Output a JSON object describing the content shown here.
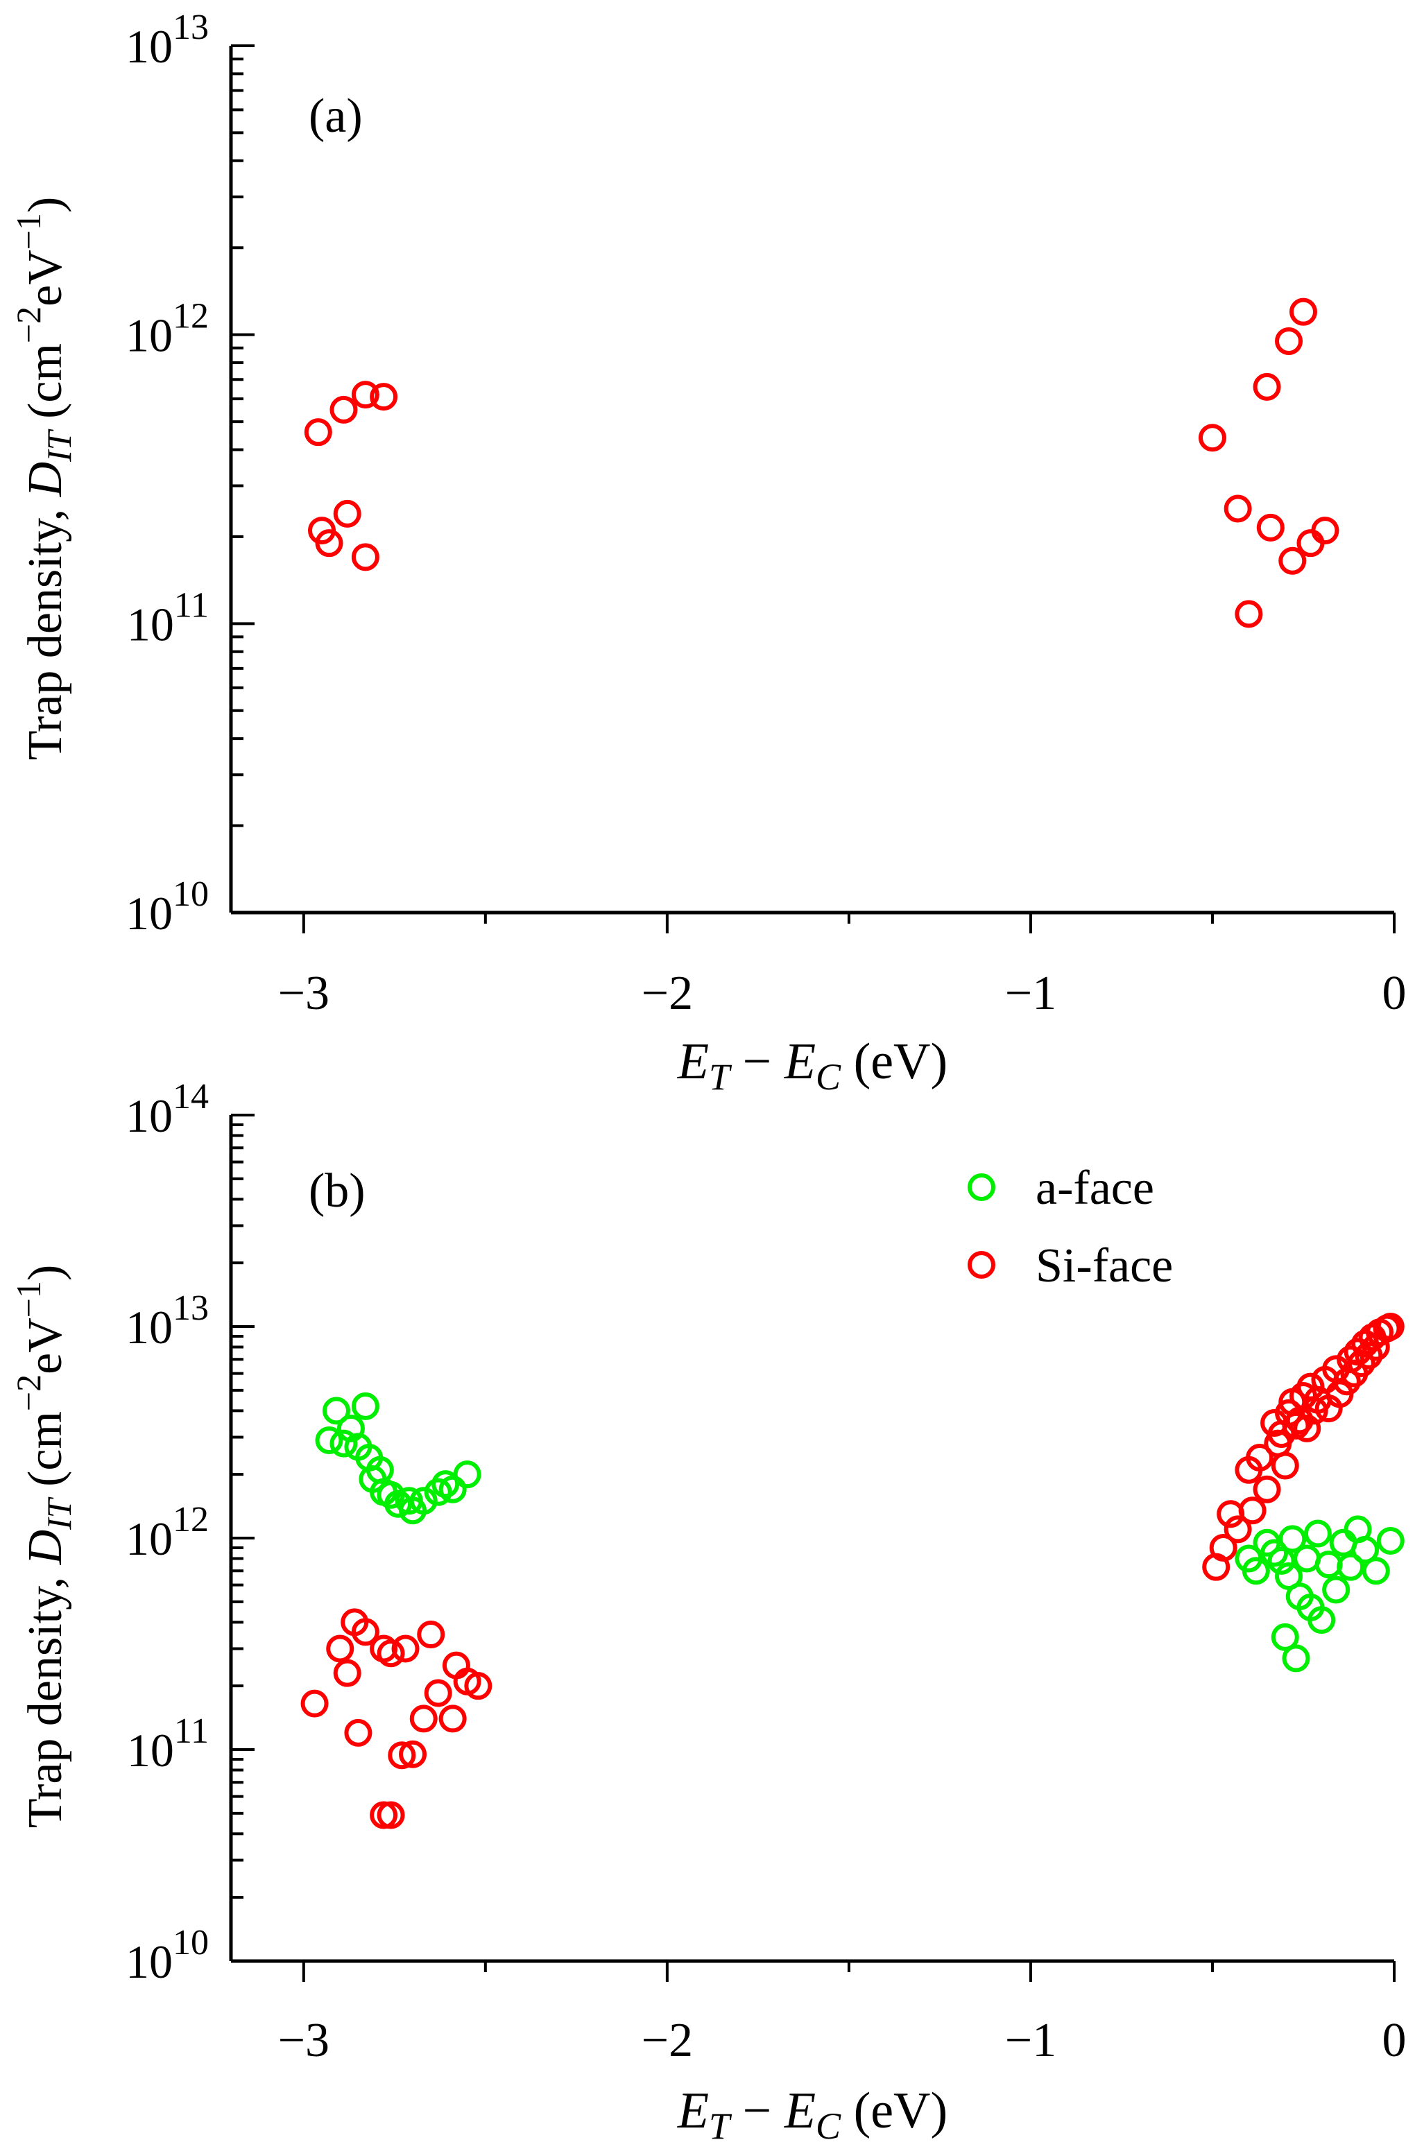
{
  "chart_data": [
    {
      "panel_label": "(a)",
      "type": "scatter",
      "y_scale": "log",
      "xlim": [
        -3.2,
        0
      ],
      "ylim": [
        10000000000.0,
        10000000000000.0
      ],
      "x_ticks": [
        -3,
        -2,
        -1,
        0
      ],
      "x_tick_labels": [
        "−3",
        "−2",
        "−1",
        "0"
      ],
      "y_decades": [
        {
          "value": 10000000000.0,
          "base": "10",
          "exp": "10"
        },
        {
          "value": 100000000000.0,
          "base": "10",
          "exp": "11"
        },
        {
          "value": 1000000000000.0,
          "base": "10",
          "exp": "12"
        },
        {
          "value": 10000000000000.0,
          "base": "10",
          "exp": "13"
        }
      ],
      "ylabel": {
        "prefix": "Trap density, ",
        "D": "D",
        "D_sub": "IT",
        "unit_open": " (cm",
        "exp1": "−2",
        "mid": "eV",
        "exp2": "−1",
        "unit_close": ")"
      },
      "xlabel": {
        "E1": "E",
        "sub1": "T",
        "minus": " − ",
        "E2": "E",
        "sub2": "C",
        "unit": " (eV)"
      },
      "series": [
        {
          "name": "Si-face",
          "color": "#ff0000",
          "points": [
            [
              -2.96,
              460000000000.0
            ],
            [
              -2.89,
              550000000000.0
            ],
            [
              -2.83,
              620000000000.0
            ],
            [
              -2.78,
              610000000000.0
            ],
            [
              -2.95,
              210000000000.0
            ],
            [
              -2.93,
              190000000000.0
            ],
            [
              -2.88,
              240000000000.0
            ],
            [
              -2.83,
              170000000000.0
            ],
            [
              -0.5,
              440000000000.0
            ],
            [
              -0.43,
              250000000000.0
            ],
            [
              -0.4,
              108000000000.0
            ],
            [
              -0.35,
              660000000000.0
            ],
            [
              -0.34,
              215000000000.0
            ],
            [
              -0.29,
              950000000000.0
            ],
            [
              -0.28,
              165000000000.0
            ],
            [
              -0.25,
              1200000000000.0
            ],
            [
              -0.23,
              190000000000.0
            ],
            [
              -0.19,
              210000000000.0
            ]
          ]
        }
      ]
    },
    {
      "panel_label": "(b)",
      "type": "scatter",
      "y_scale": "log",
      "xlim": [
        -3.2,
        0
      ],
      "ylim": [
        10000000000.0,
        100000000000000.0
      ],
      "x_ticks": [
        -3,
        -2,
        -1,
        0
      ],
      "x_tick_labels": [
        "−3",
        "−2",
        "−1",
        "0"
      ],
      "y_decades": [
        {
          "value": 10000000000.0,
          "base": "10",
          "exp": "10"
        },
        {
          "value": 100000000000.0,
          "base": "10",
          "exp": "11"
        },
        {
          "value": 1000000000000.0,
          "base": "10",
          "exp": "12"
        },
        {
          "value": 10000000000000.0,
          "base": "10",
          "exp": "13"
        },
        {
          "value": 100000000000000.0,
          "base": "10",
          "exp": "14"
        }
      ],
      "ylabel": {
        "prefix": "Trap density, ",
        "D": "D",
        "D_sub": "IT",
        "unit_open": " (cm",
        "exp1": "−2",
        "mid": "eV",
        "exp2": "−1",
        "unit_close": ")"
      },
      "xlabel": {
        "E1": "E",
        "sub1": "T",
        "minus": " − ",
        "E2": "E",
        "sub2": "C",
        "unit": " (eV)"
      },
      "legend": {
        "position": "top-right",
        "entries": [
          "a-face",
          "Si-face"
        ]
      },
      "series": [
        {
          "name": "a-face",
          "color": "#00ee00",
          "points": [
            [
              -2.93,
              2900000000000.0
            ],
            [
              -2.91,
              4000000000000.0
            ],
            [
              -2.89,
              2800000000000.0
            ],
            [
              -2.87,
              3300000000000.0
            ],
            [
              -2.85,
              2700000000000.0
            ],
            [
              -2.83,
              4200000000000.0
            ],
            [
              -2.82,
              2400000000000.0
            ],
            [
              -2.81,
              1900000000000.0
            ],
            [
              -2.79,
              2100000000000.0
            ],
            [
              -2.78,
              1650000000000.0
            ],
            [
              -2.76,
              1600000000000.0
            ],
            [
              -2.74,
              1450000000000.0
            ],
            [
              -2.71,
              1500000000000.0
            ],
            [
              -2.7,
              1350000000000.0
            ],
            [
              -2.67,
              1500000000000.0
            ],
            [
              -2.63,
              1650000000000.0
            ],
            [
              -2.61,
              1800000000000.0
            ],
            [
              -2.59,
              1700000000000.0
            ],
            [
              -2.55,
              2000000000000.0
            ],
            [
              -0.4,
              800000000000.0
            ],
            [
              -0.38,
              700000000000.0
            ],
            [
              -0.35,
              950000000000.0
            ],
            [
              -0.33,
              850000000000.0
            ],
            [
              -0.31,
              780000000000.0
            ],
            [
              -0.3,
              340000000000.0
            ],
            [
              -0.29,
              660000000000.0
            ],
            [
              -0.28,
              990000000000.0
            ],
            [
              -0.27,
              270000000000.0
            ],
            [
              -0.26,
              530000000000.0
            ],
            [
              -0.24,
              800000000000.0
            ],
            [
              -0.23,
              470000000000.0
            ],
            [
              -0.21,
              1050000000000.0
            ],
            [
              -0.2,
              410000000000.0
            ],
            [
              -0.18,
              750000000000.0
            ],
            [
              -0.16,
              570000000000.0
            ],
            [
              -0.14,
              950000000000.0
            ],
            [
              -0.12,
              730000000000.0
            ],
            [
              -0.1,
              1100000000000.0
            ],
            [
              -0.08,
              880000000000.0
            ],
            [
              -0.05,
              700000000000.0
            ],
            [
              -0.01,
              970000000000.0
            ]
          ]
        },
        {
          "name": "Si-face",
          "color": "#ff0000",
          "points": [
            [
              -2.97,
              165000000000.0
            ],
            [
              -2.9,
              300000000000.0
            ],
            [
              -2.88,
              230000000000.0
            ],
            [
              -2.86,
              400000000000.0
            ],
            [
              -2.85,
              120000000000.0
            ],
            [
              -2.83,
              360000000000.0
            ],
            [
              -2.78,
              49000000000.0
            ],
            [
              -2.76,
              49000000000.0
            ],
            [
              -2.78,
              300000000000.0
            ],
            [
              -2.76,
              285000000000.0
            ],
            [
              -2.73,
              94000000000.0
            ],
            [
              -2.72,
              300000000000.0
            ],
            [
              -2.7,
              95000000000.0
            ],
            [
              -2.67,
              140000000000.0
            ],
            [
              -2.65,
              350000000000.0
            ],
            [
              -2.63,
              185000000000.0
            ],
            [
              -2.59,
              140000000000.0
            ],
            [
              -2.58,
              250000000000.0
            ],
            [
              -2.55,
              210000000000.0
            ],
            [
              -2.52,
              200000000000.0
            ],
            [
              -0.49,
              730000000000.0
            ],
            [
              -0.47,
              900000000000.0
            ],
            [
              -0.45,
              1300000000000.0
            ],
            [
              -0.43,
              1100000000000.0
            ],
            [
              -0.4,
              2100000000000.0
            ],
            [
              -0.39,
              1350000000000.0
            ],
            [
              -0.37,
              2400000000000.0
            ],
            [
              -0.35,
              1700000000000.0
            ],
            [
              -0.33,
              3500000000000.0
            ],
            [
              -0.32,
              2800000000000.0
            ],
            [
              -0.31,
              3100000000000.0
            ],
            [
              -0.3,
              2200000000000.0
            ],
            [
              -0.29,
              3900000000000.0
            ],
            [
              -0.28,
              4400000000000.0
            ],
            [
              -0.27,
              3400000000000.0
            ],
            [
              -0.26,
              3600000000000.0
            ],
            [
              -0.25,
              4700000000000.0
            ],
            [
              -0.24,
              3300000000000.0
            ],
            [
              -0.23,
              5200000000000.0
            ],
            [
              -0.22,
              4000000000000.0
            ],
            [
              -0.21,
              4500000000000.0
            ],
            [
              -0.19,
              5600000000000.0
            ],
            [
              -0.18,
              4100000000000.0
            ],
            [
              -0.16,
              6300000000000.0
            ],
            [
              -0.15,
              4800000000000.0
            ],
            [
              -0.13,
              5500000000000.0
            ],
            [
              -0.12,
              7000000000000.0
            ],
            [
              -0.11,
              6000000000000.0
            ],
            [
              -0.1,
              7600000000000.0
            ],
            [
              -0.09,
              6700000000000.0
            ],
            [
              -0.08,
              8300000000000.0
            ],
            [
              -0.07,
              7300000000000.0
            ],
            [
              -0.06,
              8900000000000.0
            ],
            [
              -0.05,
              8000000000000.0
            ],
            [
              -0.04,
              9400000000000.0
            ],
            [
              -0.02,
              9800000000000.0
            ],
            [
              -0.01,
              10000000000000.0
            ]
          ]
        }
      ]
    }
  ]
}
